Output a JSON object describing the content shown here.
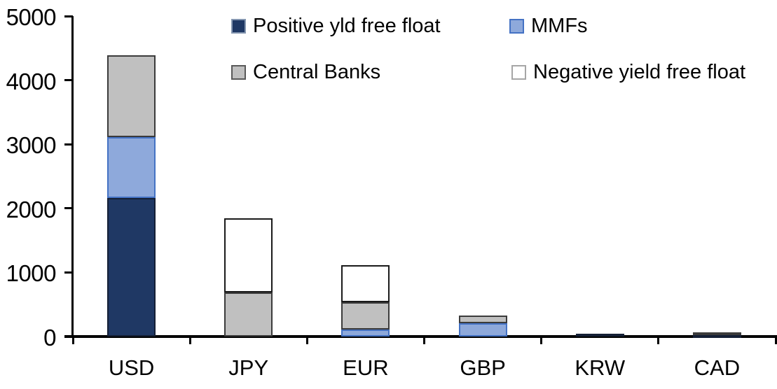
{
  "chart_data": {
    "type": "bar",
    "stacked": true,
    "title": "",
    "xlabel": "",
    "ylabel": "",
    "categories": [
      "USD",
      "JPY",
      "EUR",
      "GBP",
      "KRW",
      "CAD"
    ],
    "series": [
      {
        "name": "Positive yld free float",
        "color": "#1f3864",
        "border_color": "#141f35",
        "swatch_border": "#8496b0",
        "values": [
          2160,
          0,
          0,
          0,
          45,
          25
        ]
      },
      {
        "name": "MMFs",
        "color": "#8ea9db",
        "border_color": "#4472c4",
        "swatch_border": "#4472c4",
        "values": [
          950,
          0,
          110,
          210,
          0,
          0
        ]
      },
      {
        "name": "Central Banks",
        "color": "#c0c0c0",
        "border_color": "#3b3b3b",
        "swatch_border": "#595959",
        "values": [
          1280,
          690,
          430,
          120,
          0,
          45
        ]
      },
      {
        "name": "Negative yield free float",
        "color": "#ffffff",
        "border_color": "#1a1a1a",
        "swatch_border": "#a6a6a6",
        "values": [
          0,
          1150,
          570,
          0,
          0,
          0
        ]
      }
    ],
    "totals": [
      4390,
      1840,
      1110,
      330,
      45,
      70
    ],
    "ylim": [
      0,
      5000
    ],
    "ytick_step": 1000,
    "yticks": [
      "0",
      "1000",
      "2000",
      "3000",
      "4000",
      "5000"
    ],
    "grid": false,
    "legend_position": "top",
    "axis_color": "#000000",
    "background_color": "#ffffff"
  }
}
